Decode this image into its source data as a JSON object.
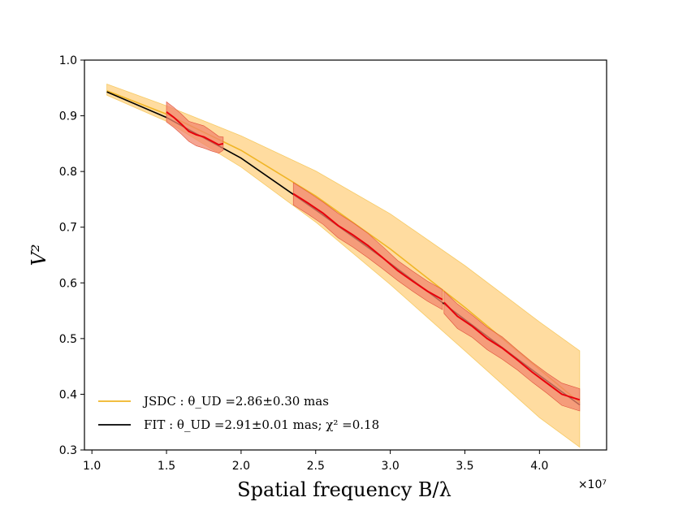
{
  "chart_data": {
    "type": "line",
    "title": "",
    "xlabel": "Spatial frequency B/λ",
    "ylabel": "V²",
    "x_scale_note": "×10⁷",
    "xlim": [
      0.95,
      4.45
    ],
    "ylim": [
      0.3,
      1.0
    ],
    "x_ticks": [
      1.0,
      1.5,
      2.0,
      2.5,
      3.0,
      3.5,
      4.0
    ],
    "x_tick_labels": [
      "1.0",
      "1.5",
      "2.0",
      "2.5",
      "3.0",
      "3.5",
      "4.0"
    ],
    "y_ticks": [
      0.3,
      0.4,
      0.5,
      0.6,
      0.7,
      0.8,
      0.9,
      1.0
    ],
    "y_tick_labels": [
      "0.3",
      "0.4",
      "0.5",
      "0.6",
      "0.7",
      "0.8",
      "0.9",
      "1.0"
    ],
    "colors": {
      "jsdc": "#f0b526",
      "jsdc_band": "#ffdca0",
      "fit": "#000000",
      "data": "#e8000b",
      "data_band": "#f2876e"
    },
    "series": [
      {
        "name": "JSDC",
        "legend": "JSDC : θ_UD =2.86±0.30 mas",
        "x": [
          1.1,
          1.5,
          2.0,
          2.5,
          3.0,
          3.5,
          4.0,
          4.27
        ],
        "y": [
          0.945,
          0.903,
          0.838,
          0.756,
          0.661,
          0.556,
          0.445,
          0.385
        ],
        "lower": [
          0.937,
          0.89,
          0.808,
          0.709,
          0.597,
          0.478,
          0.358,
          0.305
        ],
        "upper": [
          0.957,
          0.918,
          0.864,
          0.801,
          0.724,
          0.631,
          0.53,
          0.478
        ]
      },
      {
        "name": "FIT",
        "legend": "FIT : θ_UD =2.91±0.01 mas; χ² =0.18",
        "x": [
          1.1,
          1.5,
          2.0,
          2.5,
          3.0,
          3.5,
          4.0,
          4.27
        ],
        "y": [
          0.943,
          0.897,
          0.824,
          0.731,
          0.635,
          0.534,
          0.434,
          0.381
        ]
      }
    ],
    "measurements": [
      {
        "segment": 1,
        "x": [
          1.5,
          1.55,
          1.6,
          1.65,
          1.7,
          1.75,
          1.8,
          1.85,
          1.88
        ],
        "y": [
          0.907,
          0.897,
          0.885,
          0.872,
          0.866,
          0.862,
          0.855,
          0.848,
          0.85
        ],
        "err": [
          0.018,
          0.018,
          0.018,
          0.018,
          0.02,
          0.02,
          0.018,
          0.015,
          0.012
        ]
      },
      {
        "segment": 2,
        "x": [
          2.35,
          2.45,
          2.55,
          2.65,
          2.75,
          2.85,
          2.95,
          3.05,
          3.15,
          3.25,
          3.35
        ],
        "y": [
          0.76,
          0.743,
          0.725,
          0.703,
          0.686,
          0.667,
          0.645,
          0.622,
          0.603,
          0.585,
          0.57
        ],
        "err": [
          0.02,
          0.02,
          0.02,
          0.022,
          0.022,
          0.022,
          0.02,
          0.018,
          0.018,
          0.018,
          0.018
        ]
      },
      {
        "segment": 3,
        "x": [
          3.36,
          3.45,
          3.55,
          3.65,
          3.75,
          3.85,
          3.95,
          4.05,
          4.15,
          4.27
        ],
        "y": [
          0.565,
          0.54,
          0.522,
          0.5,
          0.483,
          0.462,
          0.44,
          0.42,
          0.4,
          0.39
        ],
        "err": [
          0.02,
          0.022,
          0.02,
          0.02,
          0.02,
          0.018,
          0.018,
          0.018,
          0.02,
          0.02
        ]
      }
    ]
  }
}
